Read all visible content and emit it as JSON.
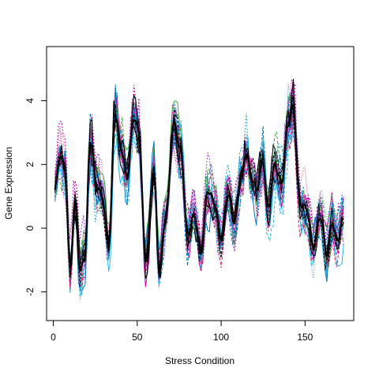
{
  "chart_data": {
    "type": "line",
    "title": "",
    "xlabel": "Stress Condition",
    "ylabel": "Gene Expression",
    "xlim": [
      -4,
      179
    ],
    "ylim": [
      -2.9,
      5.7
    ],
    "x_ticks": [
      0,
      50,
      100,
      150
    ],
    "y_ticks": [
      -2,
      0,
      2,
      4
    ],
    "grid": false,
    "legend": "none",
    "x_start": 1,
    "x_end": 173,
    "colors": [
      "#000000",
      "#cc0099",
      "#22bbee",
      "#3399cc",
      "#44aa44",
      "#cc3366",
      "#aa33cc",
      "#0077bb"
    ],
    "mean_profile_anchors": [
      [
        1,
        1.2
      ],
      [
        4,
        2.3
      ],
      [
        7,
        1.8
      ],
      [
        10,
        -1.3
      ],
      [
        13,
        0.8
      ],
      [
        16,
        -1.4
      ],
      [
        19,
        -0.8
      ],
      [
        22,
        2.8
      ],
      [
        26,
        1.3
      ],
      [
        29,
        1.0
      ],
      [
        33,
        -0.6
      ],
      [
        37,
        3.6
      ],
      [
        40,
        2.6
      ],
      [
        44,
        1.6
      ],
      [
        48,
        3.5
      ],
      [
        51,
        3.0
      ],
      [
        55,
        -1.0
      ],
      [
        60,
        1.8
      ],
      [
        63,
        -1.3
      ],
      [
        67,
        0.3
      ],
      [
        72,
        3.3
      ],
      [
        76,
        2.4
      ],
      [
        80,
        -0.2
      ],
      [
        84,
        0.4
      ],
      [
        88,
        -0.8
      ],
      [
        92,
        1.2
      ],
      [
        96,
        0.8
      ],
      [
        100,
        -0.3
      ],
      [
        104,
        1.1
      ],
      [
        108,
        0.2
      ],
      [
        112,
        1.6
      ],
      [
        115,
        2.4
      ],
      [
        118,
        1.6
      ],
      [
        121,
        1.2
      ],
      [
        125,
        2.1
      ],
      [
        128,
        0.6
      ],
      [
        132,
        2.0
      ],
      [
        136,
        1.4
      ],
      [
        140,
        3.3
      ],
      [
        143,
        3.8
      ],
      [
        147,
        0.8
      ],
      [
        151,
        0.6
      ],
      [
        155,
        -0.6
      ],
      [
        159,
        0.4
      ],
      [
        163,
        -0.8
      ],
      [
        166,
        0.2
      ],
      [
        169,
        -0.4
      ],
      [
        173,
        0.3
      ]
    ]
  }
}
